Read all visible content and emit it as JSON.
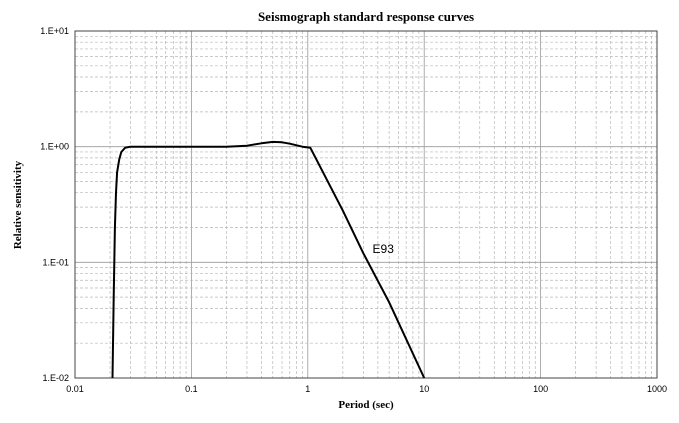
{
  "chart_data": {
    "type": "line",
    "title": "Seismograph standard response curves",
    "xlabel": "Period (sec)",
    "ylabel": "Relative sensitivity",
    "xscale": "log",
    "yscale": "log",
    "xlim": [
      0.01,
      1000
    ],
    "ylim": [
      0.01,
      10
    ],
    "x_ticks": [
      {
        "value": 0.01,
        "label": "0.01"
      },
      {
        "value": 0.1,
        "label": "0.1"
      },
      {
        "value": 1,
        "label": "1"
      },
      {
        "value": 10,
        "label": "10"
      },
      {
        "value": 100,
        "label": "100"
      },
      {
        "value": 1000,
        "label": "1000"
      }
    ],
    "y_ticks": [
      {
        "value": 0.01,
        "label": "1.E-02"
      },
      {
        "value": 0.1,
        "label": "1.E-01"
      },
      {
        "value": 1,
        "label": "1.E+00"
      },
      {
        "value": 10,
        "label": "1.E+01"
      }
    ],
    "grid": true,
    "series": [
      {
        "name": "E93",
        "x": [
          0.021,
          0.0215,
          0.022,
          0.0225,
          0.023,
          0.024,
          0.025,
          0.027,
          0.03,
          0.05,
          0.1,
          0.2,
          0.3,
          0.4,
          0.5,
          0.6,
          0.7,
          0.9,
          1.05,
          2,
          3,
          5,
          10
        ],
        "y": [
          0.01,
          0.05,
          0.2,
          0.4,
          0.6,
          0.78,
          0.9,
          0.98,
          1.0,
          1.0,
          1.0,
          1.0,
          1.02,
          1.07,
          1.1,
          1.09,
          1.06,
          1.0,
          0.98,
          0.28,
          0.12,
          0.045,
          0.01
        ]
      }
    ],
    "annotations": [
      {
        "text": "E93",
        "x": 3.6,
        "y": 0.12
      }
    ]
  }
}
